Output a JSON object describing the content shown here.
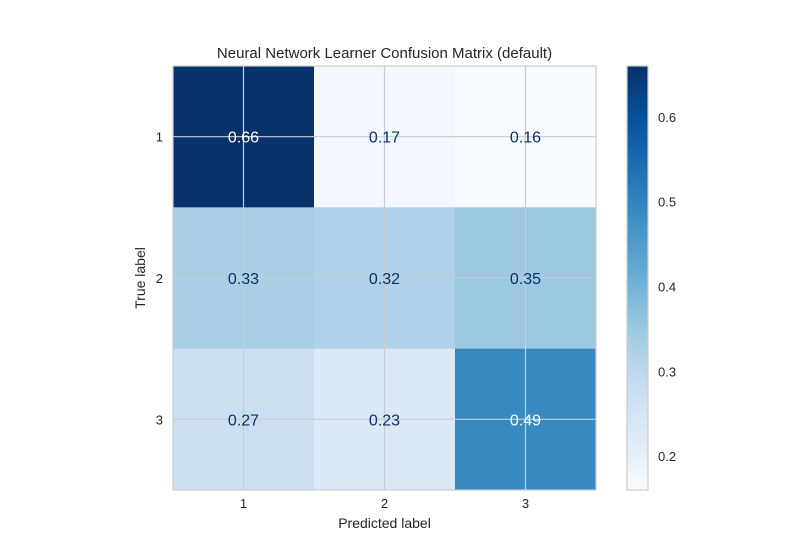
{
  "chart_data": {
    "type": "heatmap",
    "title": "Neural Network Learner Confusion Matrix (default)",
    "xlabel": "Predicted label",
    "ylabel": "True label",
    "x_categories": [
      "1",
      "2",
      "3"
    ],
    "y_categories": [
      "1",
      "2",
      "3"
    ],
    "values": [
      [
        0.66,
        0.17,
        0.16
      ],
      [
        0.33,
        0.32,
        0.35
      ],
      [
        0.27,
        0.23,
        0.49
      ]
    ],
    "cell_labels": [
      [
        "0.66",
        "0.17",
        "0.16"
      ],
      [
        "0.33",
        "0.32",
        "0.35"
      ],
      [
        "0.27",
        "0.23",
        "0.49"
      ]
    ],
    "colormap": "Blues",
    "color_range": [
      0.16,
      0.66
    ],
    "colorbar_ticks": [
      "0.2",
      "0.3",
      "0.4",
      "0.5",
      "0.6"
    ],
    "grid": true
  }
}
